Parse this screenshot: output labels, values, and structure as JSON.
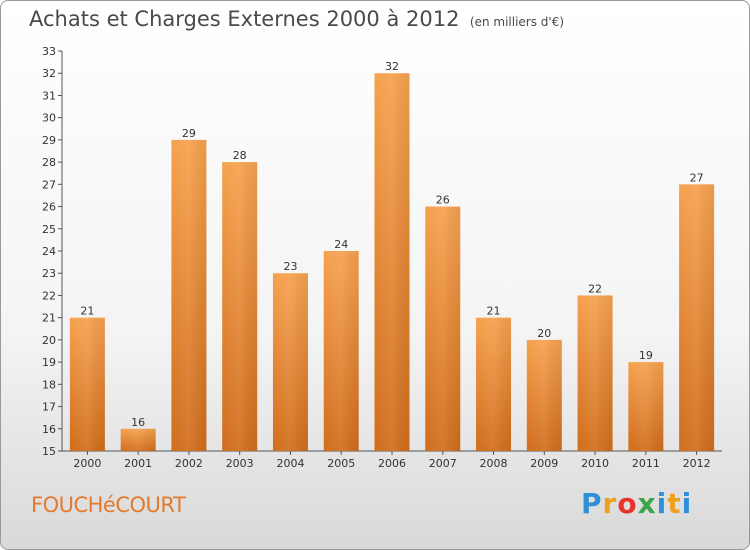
{
  "chart_data": {
    "type": "bar",
    "title": "Achats et Charges Externes 2000 à 2012",
    "unit_label": "(en milliers d'€)",
    "categories": [
      "2000",
      "2001",
      "2002",
      "2003",
      "2004",
      "2005",
      "2006",
      "2007",
      "2008",
      "2009",
      "2010",
      "2011",
      "2012"
    ],
    "values": [
      21,
      16,
      29,
      28,
      23,
      24,
      32,
      26,
      21,
      20,
      22,
      19,
      27
    ],
    "ylim": [
      15,
      33
    ],
    "yticks": [
      15,
      16,
      17,
      18,
      19,
      20,
      21,
      22,
      23,
      24,
      25,
      26,
      27,
      28,
      29,
      30,
      31,
      32,
      33
    ],
    "grid": false,
    "bar_color_top": "#f6a14e",
    "bar_color_bottom": "#d06d1c"
  },
  "footer": {
    "commune": "FOUCHéCOURT",
    "logo_letters": [
      "P",
      "r",
      "o",
      "x",
      "i",
      "t",
      "i"
    ]
  }
}
